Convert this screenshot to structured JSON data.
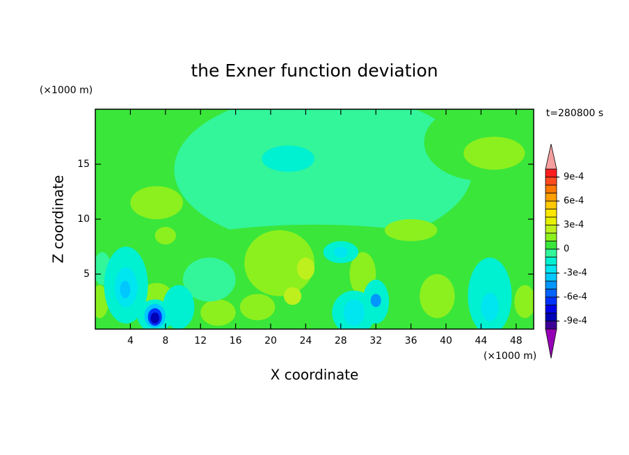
{
  "chart_data": {
    "type": "contour",
    "title": "the Exner function deviation",
    "xlabel": "X coordinate",
    "ylabel": "Z coordinate",
    "x_unit": "(×1000 m)",
    "y_unit": "(×1000 m)",
    "time_label": "t=280800 s",
    "xlim": [
      0,
      50
    ],
    "ylim": [
      0,
      20
    ],
    "xticks": [
      4,
      8,
      12,
      16,
      20,
      24,
      28,
      32,
      36,
      40,
      44,
      48
    ],
    "yticks": [
      5,
      10,
      15
    ],
    "colorbar": {
      "levels": [
        -0.001,
        -0.0009,
        -0.0008,
        -0.0007,
        -0.0006,
        -0.0005,
        -0.0004,
        -0.0003,
        -0.0002,
        -0.0001,
        0,
        0.0001,
        0.0002,
        0.0003,
        0.0004,
        0.0005,
        0.0006,
        0.0007,
        0.0008,
        0.0009,
        0.001
      ],
      "colors": [
        "#3c0096",
        "#0000b4",
        "#0000e6",
        "#0032ff",
        "#0064ff",
        "#0096ff",
        "#00c8ff",
        "#00e6f0",
        "#00f0d2",
        "#33f59a",
        "#3ae63a",
        "#8cf01e",
        "#bef01e",
        "#e6f000",
        "#ffe600",
        "#ffc800",
        "#ff9f00",
        "#ff7800",
        "#ff4a1e",
        "#ff1e1e"
      ],
      "under_color": "#9600b4",
      "over_color": "#f4a0a0",
      "ticks": [
        {
          "value": 0.0009,
          "label": "9e-4"
        },
        {
          "value": 0.0006,
          "label": "6e-4"
        },
        {
          "value": 0.0003,
          "label": "3e-4"
        },
        0,
        {
          "value": -0.0003,
          "label": "-3e-4"
        },
        {
          "value": -0.0006,
          "label": "-6e-4"
        },
        {
          "value": -0.0009,
          "label": "-9e-4"
        }
      ]
    },
    "background": 5e-05,
    "field": [
      {
        "x": 26,
        "z": 14.5,
        "rx": 17,
        "rz": 7,
        "value": -5e-05
      },
      {
        "x": 3,
        "z": 18.5,
        "rx": 4,
        "rz": 3,
        "value": 5e-05
      },
      {
        "x": 44,
        "z": 17,
        "rx": 6.5,
        "rz": 3.5,
        "value": 5e-05
      },
      {
        "x": 45.5,
        "z": 16,
        "rx": 3.5,
        "rz": 1.5,
        "value": 0.00015
      },
      {
        "x": 22,
        "z": 15.5,
        "rx": 3,
        "rz": 1.2,
        "value": -0.00015
      },
      {
        "x": 25,
        "z": 3,
        "rx": 27,
        "rz": 6.5,
        "value": 5e-05
      },
      {
        "x": 7,
        "z": 11.5,
        "rx": 3,
        "rz": 1.5,
        "value": 0.00015
      },
      {
        "x": 8,
        "z": 8.5,
        "rx": 1.2,
        "rz": 0.8,
        "value": 0.00015
      },
      {
        "x": 21,
        "z": 6,
        "rx": 4,
        "rz": 3,
        "value": 0.00015
      },
      {
        "x": 24,
        "z": 5.5,
        "rx": 1,
        "rz": 1,
        "value": 0.00025
      },
      {
        "x": 14,
        "z": 1.5,
        "rx": 2,
        "rz": 1.2,
        "value": 0.00015
      },
      {
        "x": 18.5,
        "z": 2,
        "rx": 2,
        "rz": 1.2,
        "value": 0.00015
      },
      {
        "x": 22.5,
        "z": 3,
        "rx": 1,
        "rz": 0.8,
        "value": 0.00025
      },
      {
        "x": 39,
        "z": 3,
        "rx": 2,
        "rz": 2,
        "value": 0.00015
      },
      {
        "x": 49,
        "z": 2.5,
        "rx": 1.2,
        "rz": 1.5,
        "value": 0.00015
      },
      {
        "x": 0.5,
        "z": 2.5,
        "rx": 1,
        "rz": 1.5,
        "value": 0.00015
      },
      {
        "x": 7,
        "z": 3,
        "rx": 1.8,
        "rz": 1.2,
        "value": 0.00015
      },
      {
        "x": 30.5,
        "z": 5,
        "rx": 1.5,
        "rz": 2,
        "value": 0.00015
      },
      {
        "x": 36,
        "z": 9,
        "rx": 3,
        "rz": 1,
        "value": 0.00015
      },
      {
        "x": 13,
        "z": 4.5,
        "rx": 3,
        "rz": 2,
        "value": -5e-05
      },
      {
        "x": 0.8,
        "z": 5.5,
        "rx": 1,
        "rz": 1.5,
        "value": -5e-05
      },
      {
        "x": 3.5,
        "z": 4,
        "rx": 2.5,
        "rz": 3.5,
        "value": -0.00015
      },
      {
        "x": 3.5,
        "z": 3.8,
        "rx": 1.3,
        "rz": 1.8,
        "value": -0.00025
      },
      {
        "x": 3.4,
        "z": 3.6,
        "rx": 0.6,
        "rz": 0.8,
        "value": -0.00035
      },
      {
        "x": 9.5,
        "z": 2,
        "rx": 1.8,
        "rz": 2,
        "value": -0.00015
      },
      {
        "x": 6.8,
        "z": 1.2,
        "rx": 2,
        "rz": 1.5,
        "value": -0.00015
      },
      {
        "x": 6.8,
        "z": 1.2,
        "rx": 1.2,
        "rz": 1.1,
        "value": -0.00035
      },
      {
        "x": 6.8,
        "z": 1.1,
        "rx": 0.8,
        "rz": 0.8,
        "value": -0.00065
      },
      {
        "x": 6.8,
        "z": 1,
        "rx": 0.5,
        "rz": 0.5,
        "value": -0.00085
      },
      {
        "x": 29.5,
        "z": 1.5,
        "rx": 2.5,
        "rz": 2,
        "value": -0.00015
      },
      {
        "x": 29.5,
        "z": 1.5,
        "rx": 1.2,
        "rz": 1.2,
        "value": -0.00025
      },
      {
        "x": 32,
        "z": 2.5,
        "rx": 1.5,
        "rz": 2,
        "value": -0.00015
      },
      {
        "x": 32,
        "z": 2.6,
        "rx": 0.6,
        "rz": 0.6,
        "value": -0.00045
      },
      {
        "x": 28,
        "z": 7,
        "rx": 2,
        "rz": 1,
        "value": -0.00015
      },
      {
        "x": 28,
        "z": 7,
        "rx": 0.8,
        "rz": 0.5,
        "value": -0.00025
      },
      {
        "x": 45,
        "z": 3,
        "rx": 2.5,
        "rz": 3.5,
        "value": -0.00015
      },
      {
        "x": 45,
        "z": 2,
        "rx": 1,
        "rz": 1.3,
        "value": -0.00025
      }
    ]
  }
}
